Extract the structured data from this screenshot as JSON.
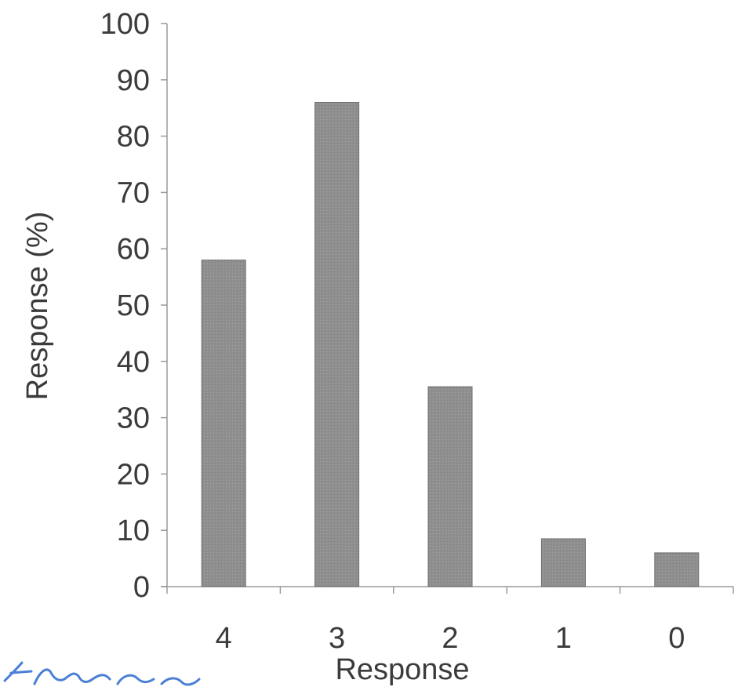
{
  "chart_data": {
    "type": "bar",
    "categories": [
      "4",
      "3",
      "2",
      "1",
      "0"
    ],
    "values": [
      58,
      86,
      35.5,
      8.5,
      6
    ],
    "title": "",
    "xlabel": "Response",
    "ylabel": "Response (%)",
    "ylim": [
      0,
      100
    ],
    "yticks": [
      0,
      10,
      20,
      30,
      40,
      50,
      60,
      70,
      80,
      90,
      100
    ],
    "grid": false,
    "legend": "none",
    "bar_color": "#8f8f8f",
    "annotation_color": "#4a7fd6"
  }
}
